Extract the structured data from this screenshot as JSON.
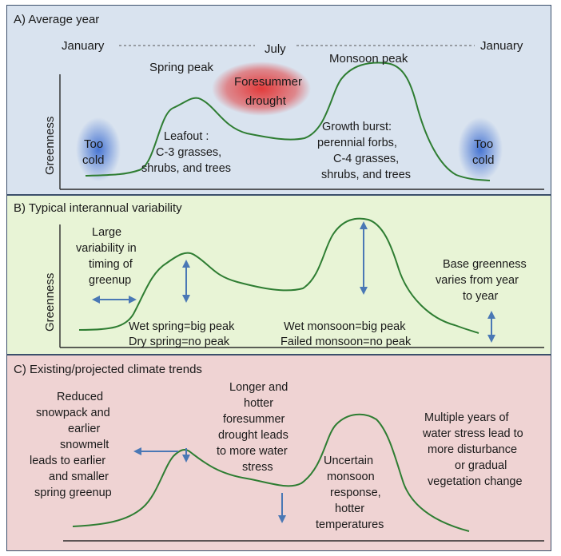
{
  "panel_a": {
    "title": "A) Average year",
    "months": [
      "January",
      "July",
      "January"
    ],
    "ylabel": "Greenness",
    "spring_peak": "Spring peak",
    "monsoon_peak": "Monsoon peak",
    "foresummer": [
      "Foresummer",
      "drought"
    ],
    "too_cold_left": [
      "Too",
      "cold"
    ],
    "too_cold_right": [
      "Too",
      "cold"
    ],
    "leafout": [
      "Leafout :",
      "C-3 grasses,",
      "shrubs, and trees"
    ],
    "growth_burst": [
      "Growth burst:",
      "perennial forbs,",
      "C-4 grasses,",
      "shrubs, and trees"
    ],
    "colors": {
      "background": "#d9e3ef",
      "cold": "#3f6fd1",
      "drought": "#e23b3b"
    }
  },
  "panel_b": {
    "title": "B) Typical interannual variability",
    "ylabel": "Greenness",
    "timing": [
      "Large",
      "variability in",
      "timing of",
      "greenup"
    ],
    "spring": [
      "Wet spring=big peak",
      "Dry spring=no peak"
    ],
    "monsoon": [
      "Wet monsoon=big peak",
      "Failed monsoon=no peak"
    ],
    "base": [
      "Base greenness",
      "varies from year",
      "to year"
    ],
    "colors": {
      "background": "#e8f4d6"
    }
  },
  "panel_c": {
    "title": "C) Existing/projected climate trends",
    "snowpack": [
      "Reduced",
      "snowpack and",
      "earlier",
      "snowmelt",
      "leads to earlier",
      "and smaller",
      "spring greenup"
    ],
    "foresummer": [
      "Longer and",
      "hotter",
      "foresummer",
      "drought leads",
      "to more water",
      "stress"
    ],
    "monsoon": [
      "Uncertain",
      "monsoon",
      "response,",
      "hotter",
      "temperatures"
    ],
    "multiyear": [
      "Multiple years of",
      "water stress lead to",
      "more disturbance",
      "or gradual",
      "vegetation change"
    ],
    "colors": {
      "background": "#efd3d3"
    }
  }
}
